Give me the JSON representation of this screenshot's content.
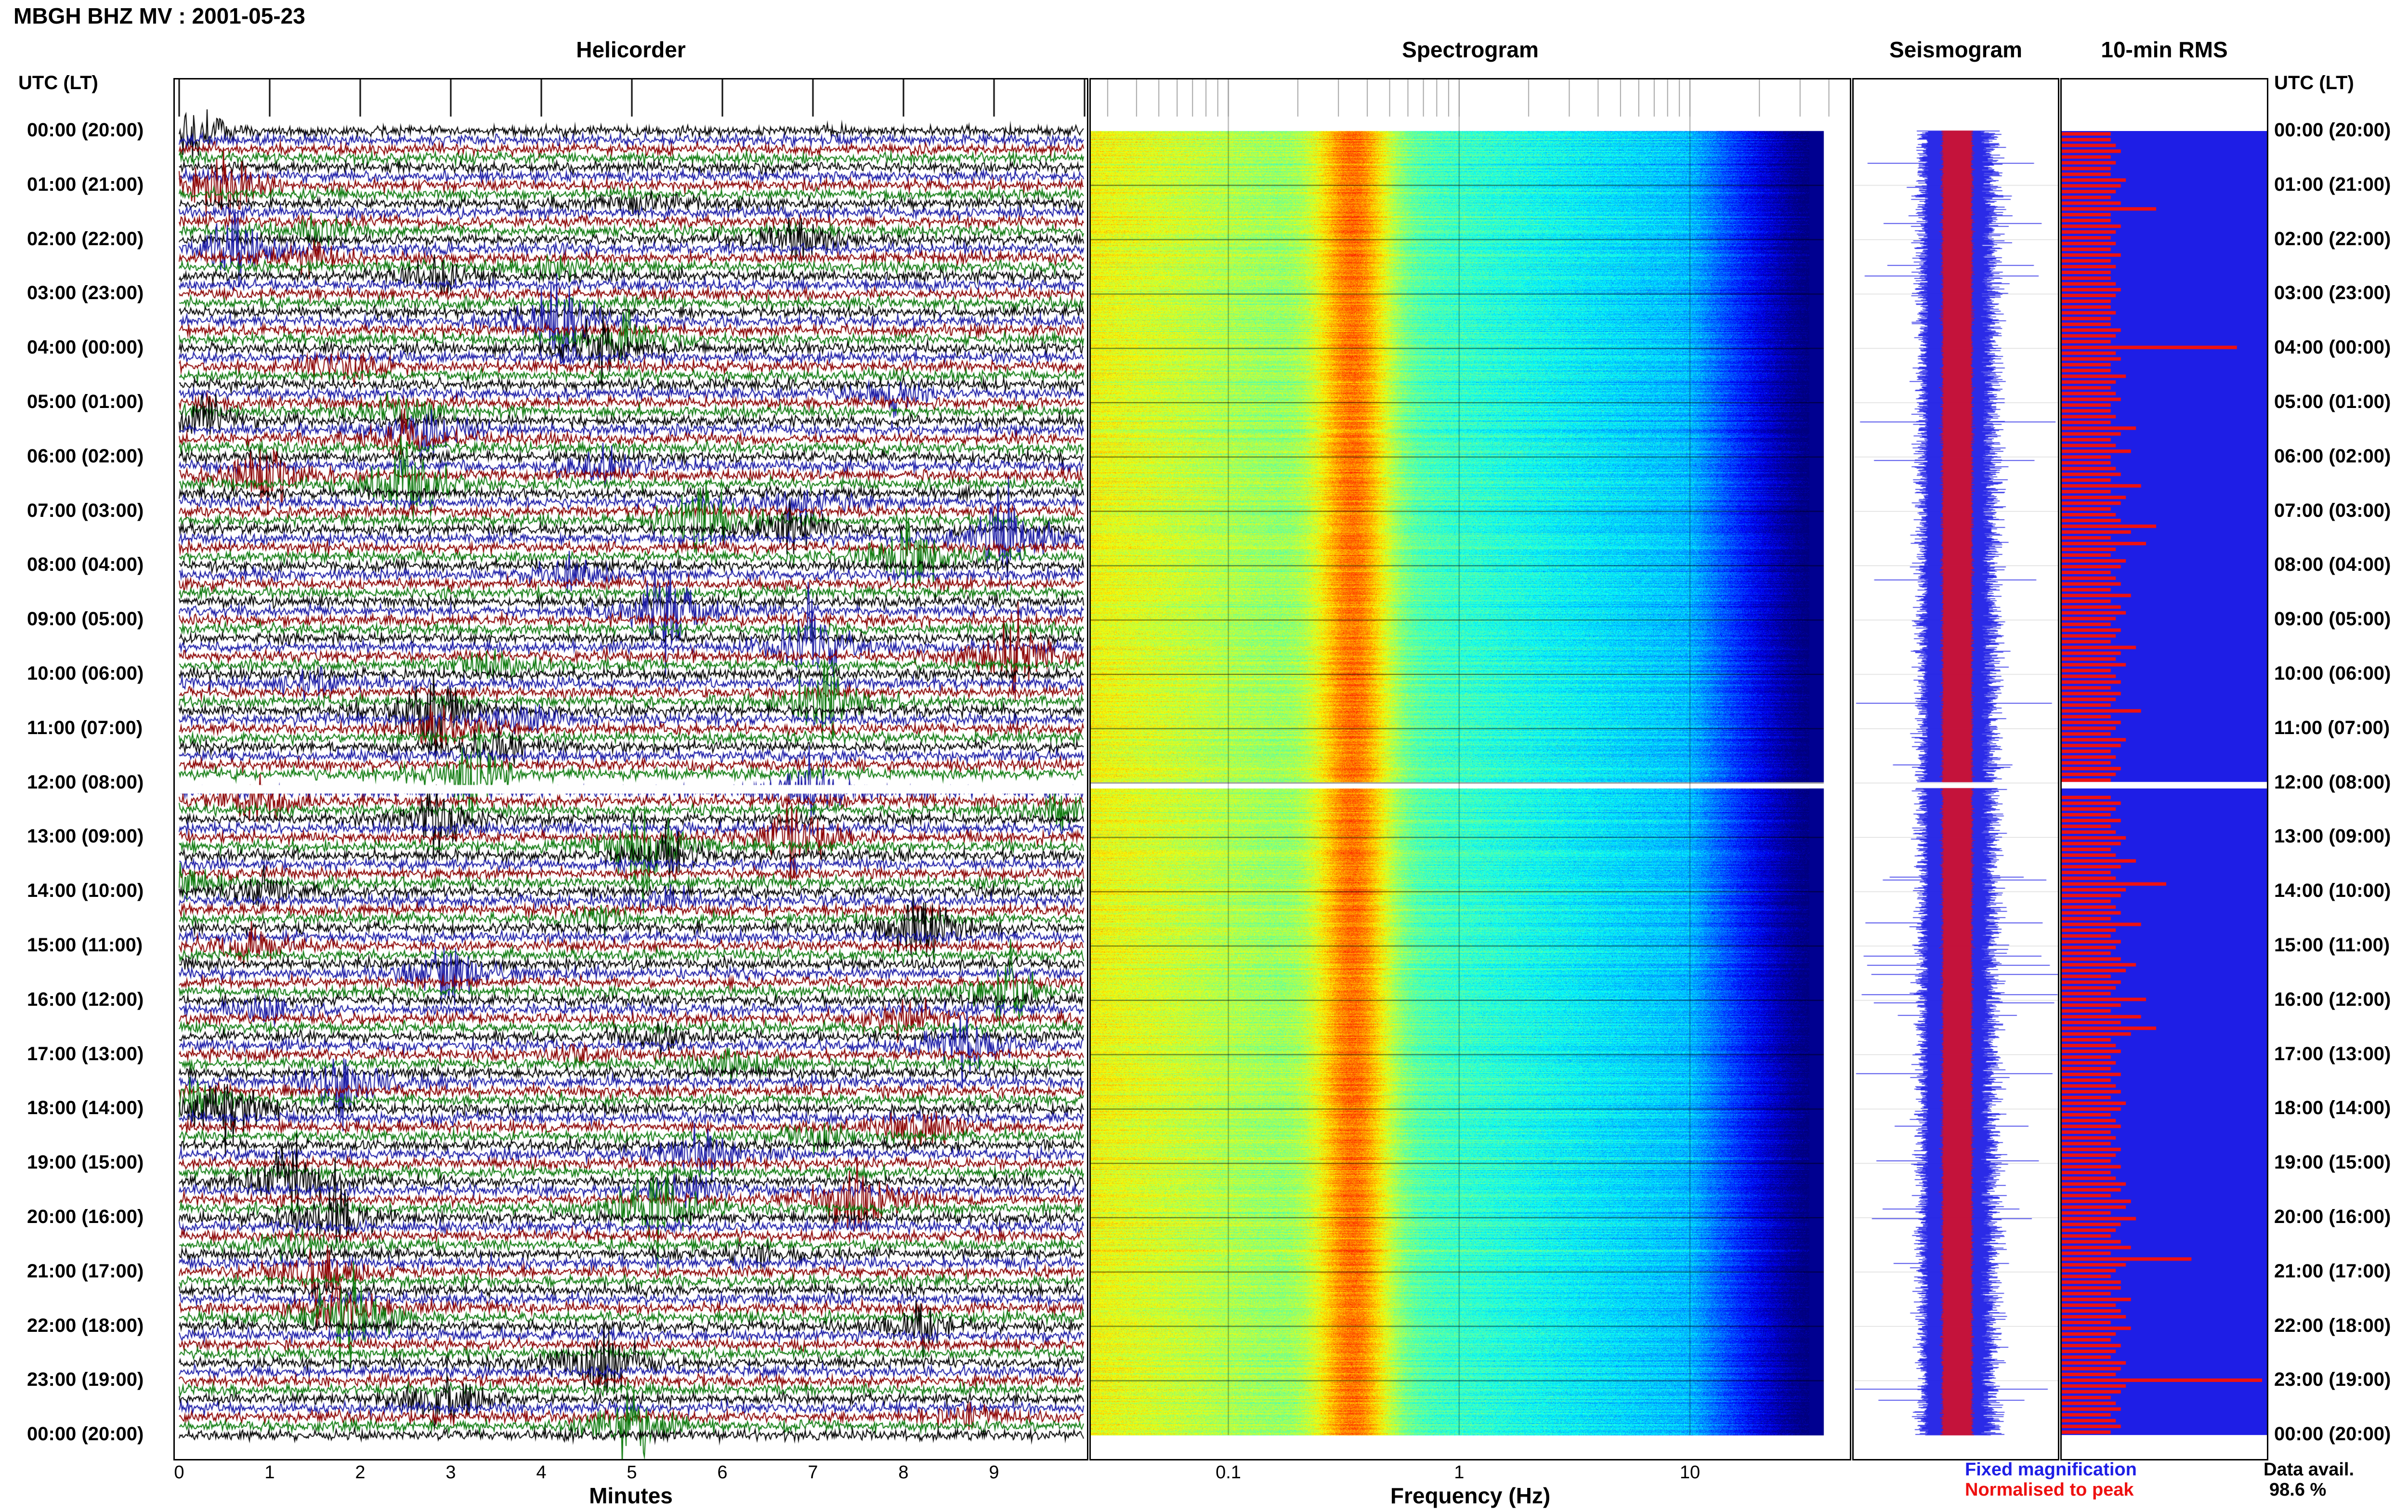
{
  "title": "MBGH BHZ MV : 2001-05-23",
  "panels": {
    "helicorder": "Helicorder",
    "spectrogram": "Spectrogram",
    "seismogram": "Seismogram",
    "rms": "10-min RMS"
  },
  "time_header_left": "UTC (LT)",
  "time_header_right": "UTC (LT)",
  "time_labels": [
    "00:00 (20:00)",
    "01:00 (21:00)",
    "02:00 (22:00)",
    "03:00 (23:00)",
    "04:00 (00:00)",
    "05:00 (01:00)",
    "06:00 (02:00)",
    "07:00 (03:00)",
    "08:00 (04:00)",
    "09:00 (05:00)",
    "10:00 (06:00)",
    "11:00 (07:00)",
    "12:00 (08:00)",
    "13:00 (09:00)",
    "14:00 (10:00)",
    "15:00 (11:00)",
    "16:00 (12:00)",
    "17:00 (13:00)",
    "18:00 (14:00)",
    "19:00 (15:00)",
    "20:00 (16:00)",
    "21:00 (17:00)",
    "22:00 (18:00)",
    "23:00 (19:00)",
    "00:00 (20:00)"
  ],
  "legend": {
    "fixed": "Fixed magnification",
    "normalised": "Normalised to peak"
  },
  "data_availability": {
    "label": "Data avail.",
    "value": "98.6 %"
  },
  "colors": {
    "helicorder_lines": [
      "#000000",
      "#1a1aa6",
      "#8b0000",
      "#0d7a0d"
    ],
    "seismogram_fixed": "#1e1ee6",
    "seismogram_normalised": "#ee1111",
    "rms_background": "#1e1ee6",
    "rms_bars": "#ee1111",
    "spectrogram_low": "#00008b",
    "spectrogram_high": "#ff0000"
  },
  "chart_data": [
    {
      "type": "line",
      "name": "helicorder",
      "xlabel": "Minutes",
      "x_ticks": [
        0,
        1,
        2,
        3,
        4,
        5,
        6,
        7,
        8,
        9
      ],
      "xlim": [
        0,
        10
      ],
      "rows_per_hour": 6,
      "hours": 24,
      "gap_hour": 12
    },
    {
      "type": "heatmap",
      "name": "spectrogram",
      "xlabel": "Frequency (Hz)",
      "x_scale": "log",
      "x_ticks": [
        0.1,
        1,
        10
      ],
      "x_tick_labels": [
        "0.1",
        "1",
        "10"
      ],
      "xlim": [
        0.025,
        50
      ],
      "peak_band_hz": [
        0.25,
        0.5
      ],
      "gap_hour": 12
    },
    {
      "type": "line",
      "name": "seismogram",
      "gap_hour": 12
    },
    {
      "type": "bar",
      "name": "10-min RMS",
      "values": [
        1.0,
        1.0,
        1.1,
        1.2,
        1.0,
        1.1,
        1.0,
        1.0,
        1.3,
        1.2,
        1.1,
        1.0,
        1.2,
        1.9,
        1.0,
        1.0,
        1.2,
        1.1,
        1.0,
        1.1,
        1.0,
        1.2,
        1.0,
        1.1,
        1.0,
        1.0,
        1.1,
        1.2,
        1.1,
        1.0,
        1.0,
        1.1,
        1.0,
        1.0,
        1.2,
        1.1,
        1.0,
        3.5,
        1.1,
        1.2,
        1.0,
        1.0,
        1.3,
        1.1,
        1.0,
        1.1,
        1.2,
        1.0,
        1.0,
        1.1,
        1.0,
        1.5,
        1.2,
        1.0,
        1.1,
        1.4,
        1.0,
        1.0,
        1.1,
        1.2,
        1.0,
        1.6,
        1.0,
        1.3,
        1.2,
        1.0,
        1.1,
        1.2,
        1.9,
        1.4,
        1.0,
        1.7,
        1.1,
        1.0,
        1.3,
        1.2,
        1.0,
        1.1,
        1.2,
        1.0,
        1.4,
        1.0,
        1.2,
        1.3,
        1.1,
        1.0,
        1.2,
        1.1,
        1.0,
        1.5,
        1.2,
        1.1,
        1.3,
        1.0,
        1.1,
        1.2,
        1.0,
        1.2,
        1.1,
        1.0,
        1.6,
        1.0,
        1.2,
        1.1,
        1.0,
        1.3,
        1.2,
        1.0,
        1.1,
        1.0,
        1.2,
        1.1,
        1.0,
        1.4,
        1.1,
        1.0,
        1.2,
        1.1,
        1.0,
        1.2,
        1.0,
        1.1,
        1.3,
        1.2,
        1.0,
        1.1,
        1.5,
        1.2,
        1.0,
        1.1,
        2.1,
        1.3,
        1.2,
        1.0,
        1.1,
        1.2,
        1.0,
        1.6,
        1.1,
        1.0,
        1.2,
        1.1,
        1.0,
        1.2,
        1.5,
        1.3,
        1.0,
        1.2,
        1.1,
        1.0,
        1.7,
        1.2,
        1.0,
        1.6,
        1.2,
        1.9,
        1.4,
        1.0,
        1.1,
        1.2,
        1.0,
        1.1,
        1.0,
        1.2,
        1.0,
        1.1,
        1.2,
        1.0,
        1.3,
        1.2,
        1.0,
        1.1,
        1.2,
        1.0,
        1.1,
        1.0,
        1.2,
        1.1,
        1.0,
        1.2,
        1.0,
        1.1,
        1.3,
        1.2,
        1.0,
        1.4,
        1.3,
        1.0,
        1.5,
        1.2,
        1.1,
        1.0,
        1.2,
        1.4,
        1.0,
        2.6,
        1.3,
        1.1,
        1.0,
        1.2,
        1.2,
        1.0,
        1.4,
        1.1,
        1.2,
        1.3,
        1.0,
        1.4,
        1.1,
        1.0,
        1.2,
        1.1,
        1.0,
        1.3,
        1.2,
        1.1,
        4.0,
        1.3,
        1.2,
        1.0,
        1.1,
        1.2,
        1.0,
        1.1,
        1.2,
        1.0
      ],
      "gap_hour": 12
    }
  ]
}
